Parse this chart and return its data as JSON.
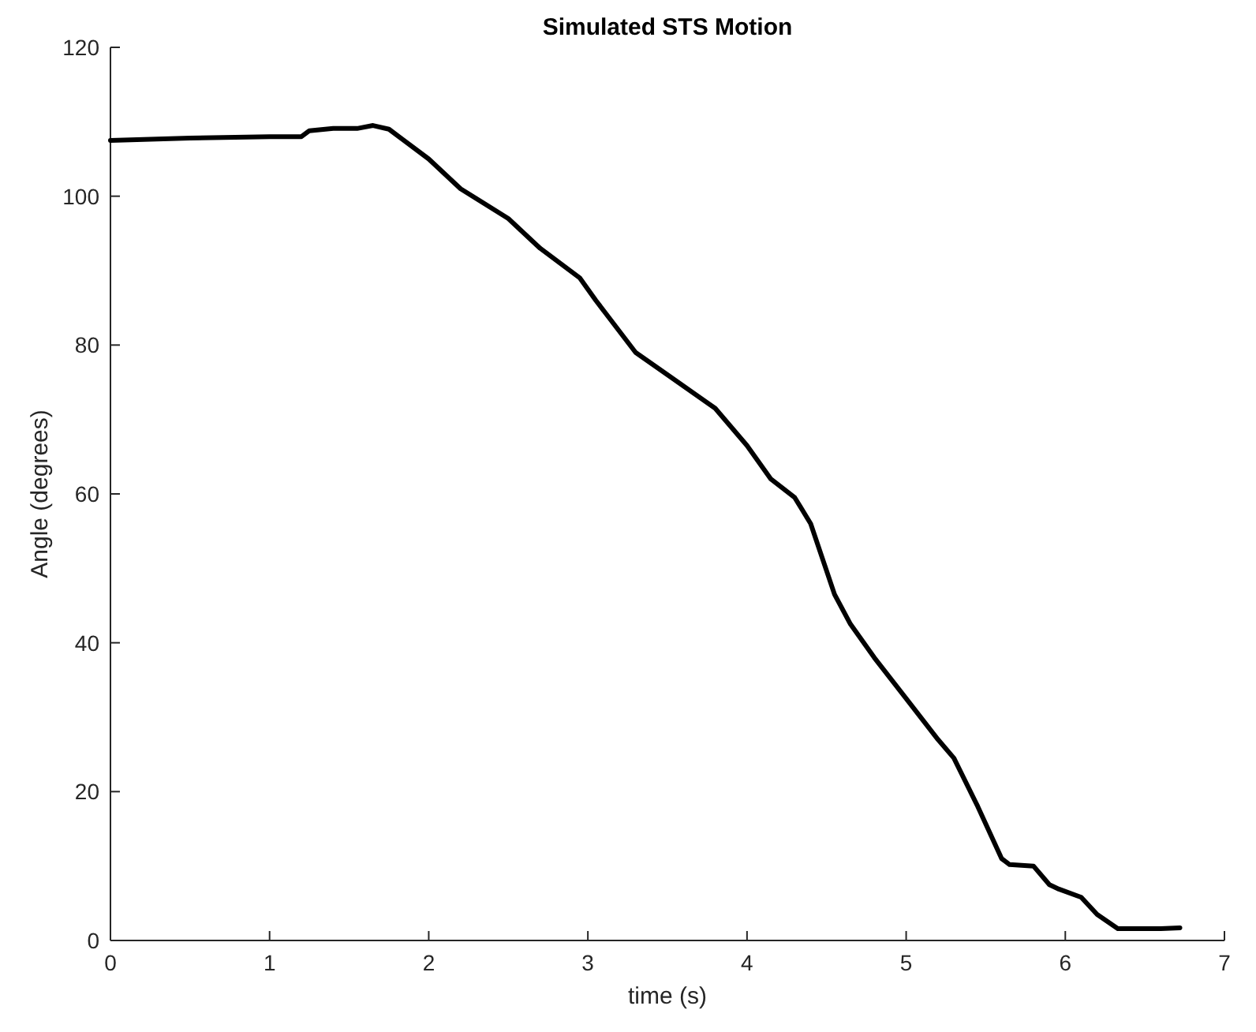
{
  "chart_data": {
    "type": "line",
    "title": "Simulated STS Motion",
    "xlabel": "time (s)",
    "ylabel": "Angle (degrees)",
    "xlim": [
      0,
      7
    ],
    "xticks": [
      0,
      1,
      2,
      3,
      4,
      5,
      6,
      7
    ],
    "ylim": [
      0,
      120
    ],
    "yticks": [
      0,
      20,
      40,
      60,
      80,
      100,
      120
    ],
    "x": [
      0,
      0.5,
      1.0,
      1.2,
      1.25,
      1.4,
      1.55,
      1.65,
      1.75,
      2.0,
      2.2,
      2.5,
      2.7,
      2.95,
      3.05,
      3.3,
      3.5,
      3.8,
      4.0,
      4.15,
      4.3,
      4.4,
      4.55,
      4.65,
      4.8,
      5.0,
      5.2,
      5.3,
      5.45,
      5.6,
      5.65,
      5.8,
      5.9,
      5.96,
      6.1,
      6.2,
      6.33,
      6.6,
      6.72
    ],
    "series": [
      {
        "color": "#000000",
        "values": [
          107.5,
          107.8,
          108,
          108,
          108.8,
          109.1,
          109.1,
          109.5,
          109,
          105,
          101,
          97,
          93,
          89,
          86,
          79,
          76,
          71.5,
          66.5,
          62,
          59.5,
          56,
          46.5,
          42.5,
          38,
          32.5,
          27,
          24.5,
          18,
          11,
          10.2,
          10,
          7.5,
          6.9,
          5.8,
          3.5,
          1.6,
          1.6,
          1.7
        ]
      }
    ]
  }
}
